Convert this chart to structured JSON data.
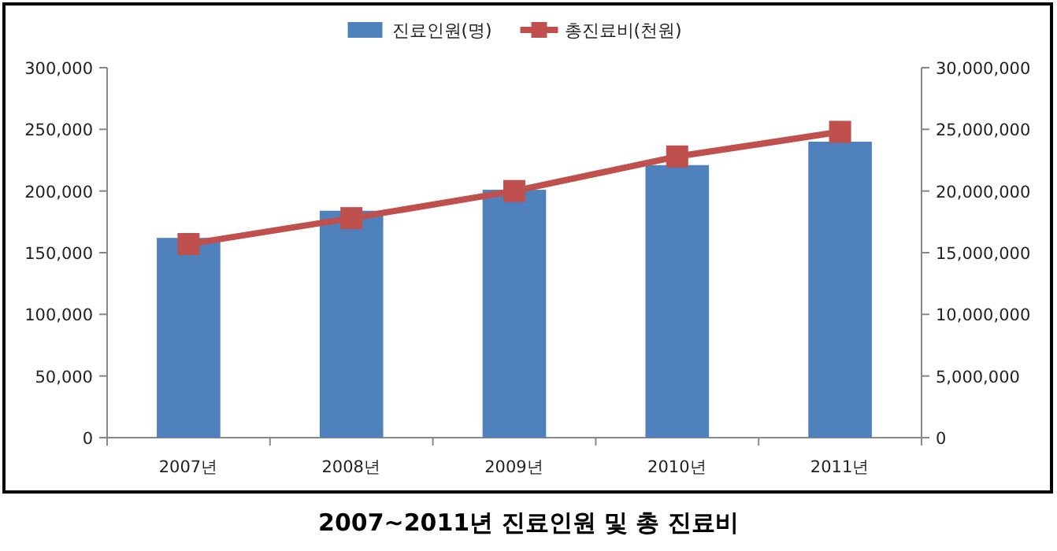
{
  "chart_data": {
    "type": "bar",
    "title": "2007~2011년 진료인원 및 총 진료비",
    "categories": [
      "2007년",
      "2008년",
      "2009년",
      "2010년",
      "2011년"
    ],
    "series": [
      {
        "name": "진료인원(명)",
        "color": "#4f81bd",
        "values": [
          162000,
          184000,
          201000,
          221000,
          240000
        ]
      },
      {
        "name": "총진료비(천원)",
        "type": "line",
        "axis": "y2",
        "color": "#c0504d",
        "marker": "square",
        "values": [
          15700000,
          17800000,
          20000000,
          22800000,
          24800000
        ]
      }
    ],
    "ylim": [
      0,
      300000
    ],
    "yticks": [
      {
        "value": 0,
        "label": "0"
      },
      {
        "value": 50000,
        "label": "50,000"
      },
      {
        "value": 100000,
        "label": "100,000"
      },
      {
        "value": 150000,
        "label": "150,000"
      },
      {
        "value": 200000,
        "label": "200,000"
      },
      {
        "value": 250000,
        "label": "250,000"
      },
      {
        "value": 300000,
        "label": "300,000"
      }
    ],
    "y2lim": [
      0,
      30000000
    ],
    "y2ticks": [
      {
        "value": 0,
        "label": "0"
      },
      {
        "value": 5000000,
        "label": "5,000,000"
      },
      {
        "value": 10000000,
        "label": "10,000,000"
      },
      {
        "value": 15000000,
        "label": "15,000,000"
      },
      {
        "value": 20000000,
        "label": "20,000,000"
      },
      {
        "value": 25000000,
        "label": "25,000,000"
      },
      {
        "value": 30000000,
        "label": "30,000,000"
      }
    ],
    "legend": "top",
    "grid": false
  }
}
